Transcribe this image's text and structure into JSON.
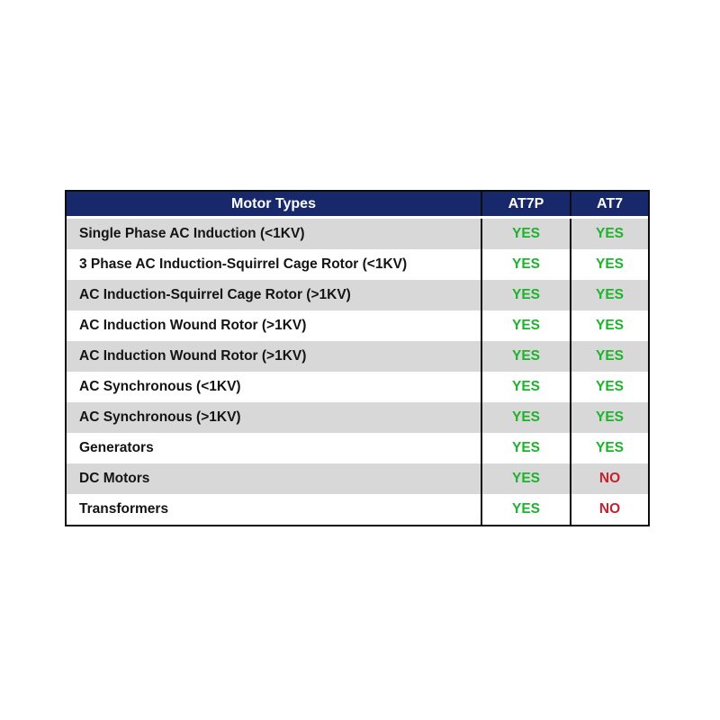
{
  "chart_data": {
    "type": "table",
    "columns": [
      "Motor Types",
      "AT7P",
      "AT7"
    ],
    "rows": [
      {
        "label": "Single Phase AC Induction (<1KV)",
        "at7p": "YES",
        "at7": "YES"
      },
      {
        "label": "3 Phase AC Induction-Squirrel Cage Rotor (<1KV)",
        "at7p": "YES",
        "at7": "YES"
      },
      {
        "label": "AC Induction-Squirrel Cage Rotor (>1KV)",
        "at7p": "YES",
        "at7": "YES"
      },
      {
        "label": "AC Induction Wound Rotor (>1KV)",
        "at7p": "YES",
        "at7": "YES"
      },
      {
        "label": "AC Induction Wound Rotor (>1KV)",
        "at7p": "YES",
        "at7": "YES"
      },
      {
        "label": "AC Synchronous (<1KV)",
        "at7p": "YES",
        "at7": "YES"
      },
      {
        "label": "AC Synchronous (>1KV)",
        "at7p": "YES",
        "at7": "YES"
      },
      {
        "label": "Generators",
        "at7p": "YES",
        "at7": "YES"
      },
      {
        "label": "DC Motors",
        "at7p": "YES",
        "at7": "NO"
      },
      {
        "label": "Transformers",
        "at7p": "YES",
        "at7": "NO"
      }
    ],
    "layout": {
      "row_striping": "alternating gray/white starting gray",
      "value_alignment": "center",
      "label_alignment": "left"
    }
  },
  "colors": {
    "header_bg": "#17286B",
    "header_text": "#FFFFFF",
    "row_alt_bg": "#D8D8D8",
    "row_bg": "#FFFFFF",
    "yes": "#1DB32B",
    "no": "#C8202E",
    "border": "#0D0D0D"
  }
}
